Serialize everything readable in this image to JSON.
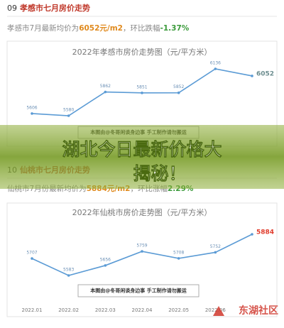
{
  "sections": [
    {
      "number": "09",
      "heading": "孝感市七月房价走势",
      "summary": [
        "孝感市7月最新均价为",
        "6052元/m2",
        "，环比跌幅",
        "-1.37%"
      ]
    },
    {
      "number": "10",
      "heading": "仙桃市七月房价走势",
      "summary": [
        "仙桃市7月份最新均价为",
        "5884元/m2",
        "，环比涨幅",
        "2.29%"
      ]
    }
  ],
  "banner": "湖北今日最新价格大揭秘！",
  "watermark": "东湖社区",
  "chart_data": [
    {
      "type": "line",
      "title": "2022年孝感市房价走势图（元/平方米）",
      "color": "#5b9bd5",
      "values": [
        5606,
        5580,
        5862,
        5851,
        5852,
        6136,
        6052
      ],
      "caption": "本图由@冬哥闲谈身边事 手工制作请勿搬运"
    },
    {
      "type": "line",
      "title": "2022年仙桃市房价走势图（元/平方米）",
      "color": "#5b9bd5",
      "categories": [
        "2022.01",
        "2022.02",
        "2022.03",
        "2022.04",
        "2022.05",
        "2022.06",
        null
      ],
      "values": [
        5707,
        5583,
        5656,
        5759,
        5708,
        5752,
        5884
      ],
      "caption": "本图由@冬哥闲谈身边事 手工制作请勿搬运"
    }
  ]
}
